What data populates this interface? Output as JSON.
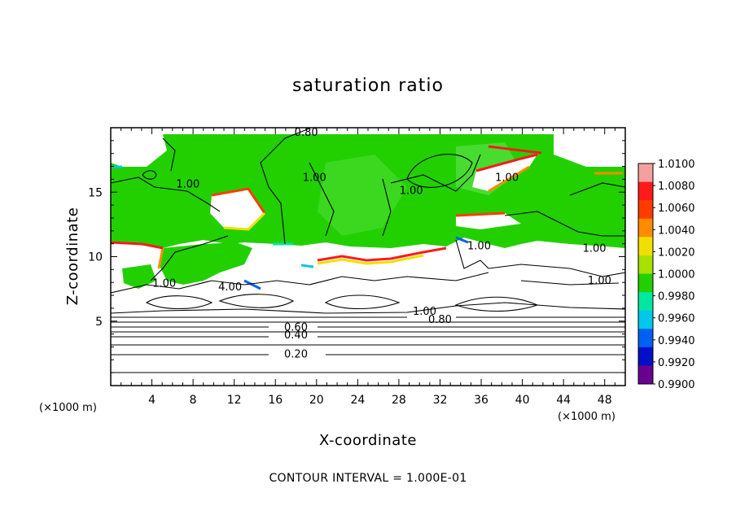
{
  "chart_data": {
    "type": "heatmap",
    "title": "saturation ratio",
    "xlabel": "X-coordinate",
    "ylabel": "Z-coordinate",
    "x_unit": "(×1000 m)",
    "x_unit_right": "(×1000 m)",
    "xlim": [
      0,
      50
    ],
    "ylim": [
      0,
      20
    ],
    "x_ticks": [
      4,
      8,
      12,
      16,
      20,
      24,
      28,
      32,
      36,
      40,
      44,
      48
    ],
    "y_ticks": [
      5,
      10,
      15
    ],
    "footnote": "CONTOUR INTERVAL = 1.000E-01",
    "colorbar": {
      "labels": [
        "1.0100",
        "1.0080",
        "1.0060",
        "1.0040",
        "1.0020",
        "1.0000",
        "0.9980",
        "0.9960",
        "0.9940",
        "0.9920",
        "0.9900"
      ],
      "colors": [
        "#f4a0a0",
        "#ff1a1a",
        "#ff3c00",
        "#ff8c00",
        "#f0e000",
        "#a8e000",
        "#22d000",
        "#00e8a0",
        "#00c8e8",
        "#0060f0",
        "#0010c8",
        "#6a0090"
      ]
    },
    "contour_labels": [
      {
        "text": "0.80",
        "x": 19.0,
        "z": 19.5
      },
      {
        "text": "1.00",
        "x": 7.5,
        "z": 15.5
      },
      {
        "text": "1.00",
        "x": 19.8,
        "z": 16.0
      },
      {
        "text": "1.00",
        "x": 29.2,
        "z": 15.0
      },
      {
        "text": "1.00",
        "x": 38.5,
        "z": 16.0
      },
      {
        "text": "1.00",
        "x": 35.8,
        "z": 10.7
      },
      {
        "text": "1.00",
        "x": 47.0,
        "z": 10.5
      },
      {
        "text": "1.00",
        "x": 47.5,
        "z": 8.0
      },
      {
        "text": "1.00",
        "x": 5.2,
        "z": 7.8
      },
      {
        "text": "1.00",
        "x": 30.5,
        "z": 5.6
      },
      {
        "text": "4.00",
        "x": 11.6,
        "z": 7.5
      },
      {
        "text": "0.80",
        "x": 32.0,
        "z": 5.0
      },
      {
        "text": "0.60",
        "x": 18.0,
        "z": 4.4
      },
      {
        "text": "0.40",
        "x": 18.0,
        "z": 3.8
      },
      {
        "text": "0.20",
        "x": 18.0,
        "z": 2.3
      }
    ]
  }
}
